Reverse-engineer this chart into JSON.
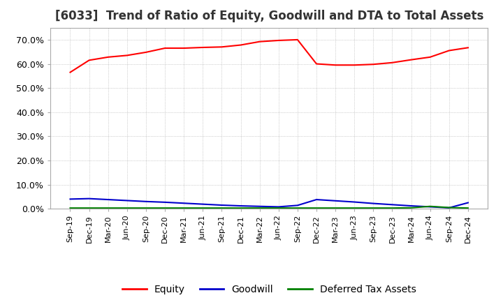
{
  "title": "[6033]  Trend of Ratio of Equity, Goodwill and DTA to Total Assets",
  "title_fontsize": 12,
  "ylim": [
    0.0,
    0.75
  ],
  "yticks": [
    0.0,
    0.1,
    0.2,
    0.3,
    0.4,
    0.5,
    0.6,
    0.7
  ],
  "ytick_labels": [
    "0.0%",
    "10.0%",
    "20.0%",
    "30.0%",
    "40.0%",
    "50.0%",
    "60.0%",
    "70.0%"
  ],
  "background_color": "#ffffff",
  "grid_color": "#aaaaaa",
  "x_labels": [
    "Sep-19",
    "Dec-19",
    "Mar-20",
    "Jun-20",
    "Sep-20",
    "Dec-20",
    "Mar-21",
    "Jun-21",
    "Sep-21",
    "Dec-21",
    "Mar-22",
    "Jun-22",
    "Sep-22",
    "Dec-22",
    "Mar-23",
    "Jun-23",
    "Sep-23",
    "Dec-23",
    "Mar-24",
    "Jun-24",
    "Sep-24",
    "Dec-24"
  ],
  "equity": [
    0.565,
    0.615,
    0.628,
    0.635,
    0.648,
    0.665,
    0.665,
    0.668,
    0.67,
    0.678,
    0.692,
    0.697,
    0.7,
    0.6,
    0.595,
    0.595,
    0.598,
    0.605,
    0.617,
    0.628,
    0.655,
    0.667
  ],
  "goodwill": [
    0.04,
    0.042,
    0.038,
    0.034,
    0.03,
    0.027,
    0.023,
    0.019,
    0.015,
    0.012,
    0.01,
    0.008,
    0.014,
    0.038,
    0.033,
    0.028,
    0.022,
    0.017,
    0.012,
    0.008,
    0.004,
    0.025
  ],
  "dta": [
    0.003,
    0.003,
    0.003,
    0.003,
    0.003,
    0.003,
    0.003,
    0.003,
    0.003,
    0.003,
    0.003,
    0.003,
    0.003,
    0.003,
    0.003,
    0.003,
    0.003,
    0.003,
    0.004,
    0.01,
    0.005,
    0.003
  ],
  "equity_color": "#ff0000",
  "goodwill_color": "#0000cc",
  "dta_color": "#008000",
  "legend_labels": [
    "Equity",
    "Goodwill",
    "Deferred Tax Assets"
  ]
}
